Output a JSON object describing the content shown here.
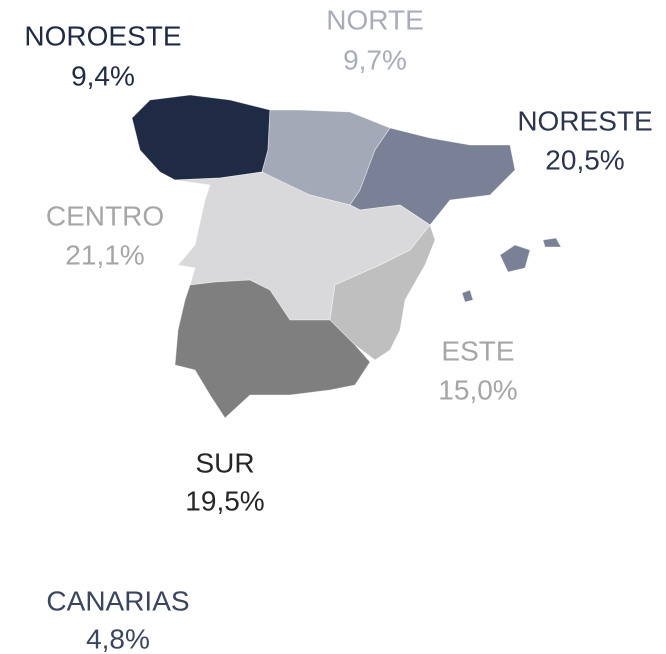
{
  "regions": [
    {
      "name": "NOROESTE",
      "value": "9,4%",
      "fill": "#1f2a44",
      "text_color": "#1f2a44"
    },
    {
      "name": "NORTE",
      "value": "9,7%",
      "fill": "#a4a9b8",
      "text_color": "#a8adbb"
    },
    {
      "name": "NORESTE",
      "value": "20,5%",
      "fill": "#7a8196",
      "text_color": "#2c3550"
    },
    {
      "name": "CENTRO",
      "value": "21,1%",
      "fill": "#d9d9db",
      "text_color": "#a6a6a6"
    },
    {
      "name": "ESTE",
      "value": "15,0%",
      "fill": "#bfbfbf",
      "text_color": "#a6a6a6"
    },
    {
      "name": "SUR",
      "value": "19,5%",
      "fill": "#7f7f7f",
      "text_color": "#262626"
    },
    {
      "name": "CANARIAS",
      "value": "4,8%",
      "fill": "#6b7385",
      "text_color": "#3a4560"
    }
  ]
}
